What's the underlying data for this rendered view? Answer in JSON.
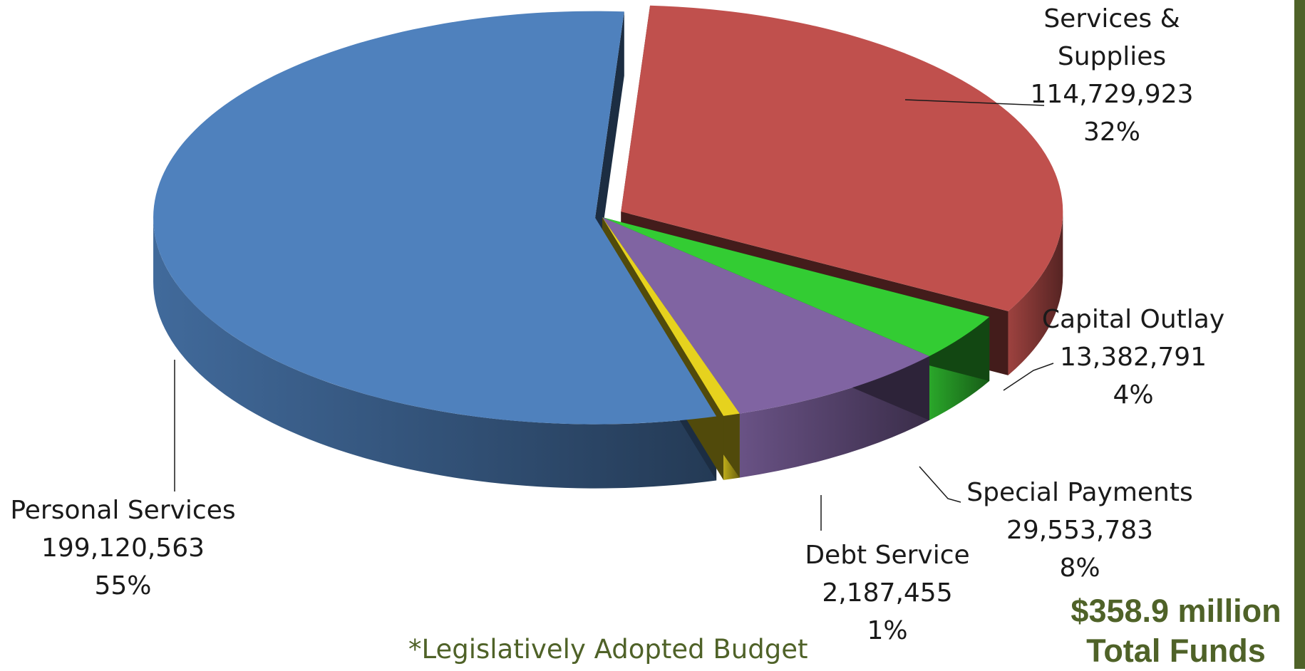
{
  "chart_data": {
    "type": "pie",
    "title": "",
    "slices": [
      {
        "name": "Services & Supplies",
        "name_lines": [
          "Services &",
          "Supplies"
        ],
        "value": 114729923,
        "value_label": "114,729,923",
        "percent_label": "32%",
        "color": "#c0504d"
      },
      {
        "name": "Capital Outlay",
        "name_lines": [
          "Capital Outlay"
        ],
        "value": 13382791,
        "value_label": "13,382,791",
        "percent_label": "4%",
        "color": "#33cc33"
      },
      {
        "name": "Special Payments",
        "name_lines": [
          "Special Payments"
        ],
        "value": 29553783,
        "value_label": "29,553,783",
        "percent_label": "8%",
        "color": "#8064a2"
      },
      {
        "name": "Debt Service",
        "name_lines": [
          "Debt Service"
        ],
        "value": 2187455,
        "value_label": "2,187,455",
        "percent_label": "1%",
        "color": "#e6d21e"
      },
      {
        "name": "Personal Services",
        "name_lines": [
          "Personal Services"
        ],
        "value": 199120563,
        "value_label": "199,120,563",
        "percent_label": "55%",
        "color": "#4f81bd"
      }
    ],
    "footnote": "*Legislatively Adopted Budget",
    "total_lines": [
      "$358.9 million",
      "Total Funds"
    ]
  },
  "colors": {
    "accent": "#4f6228"
  }
}
